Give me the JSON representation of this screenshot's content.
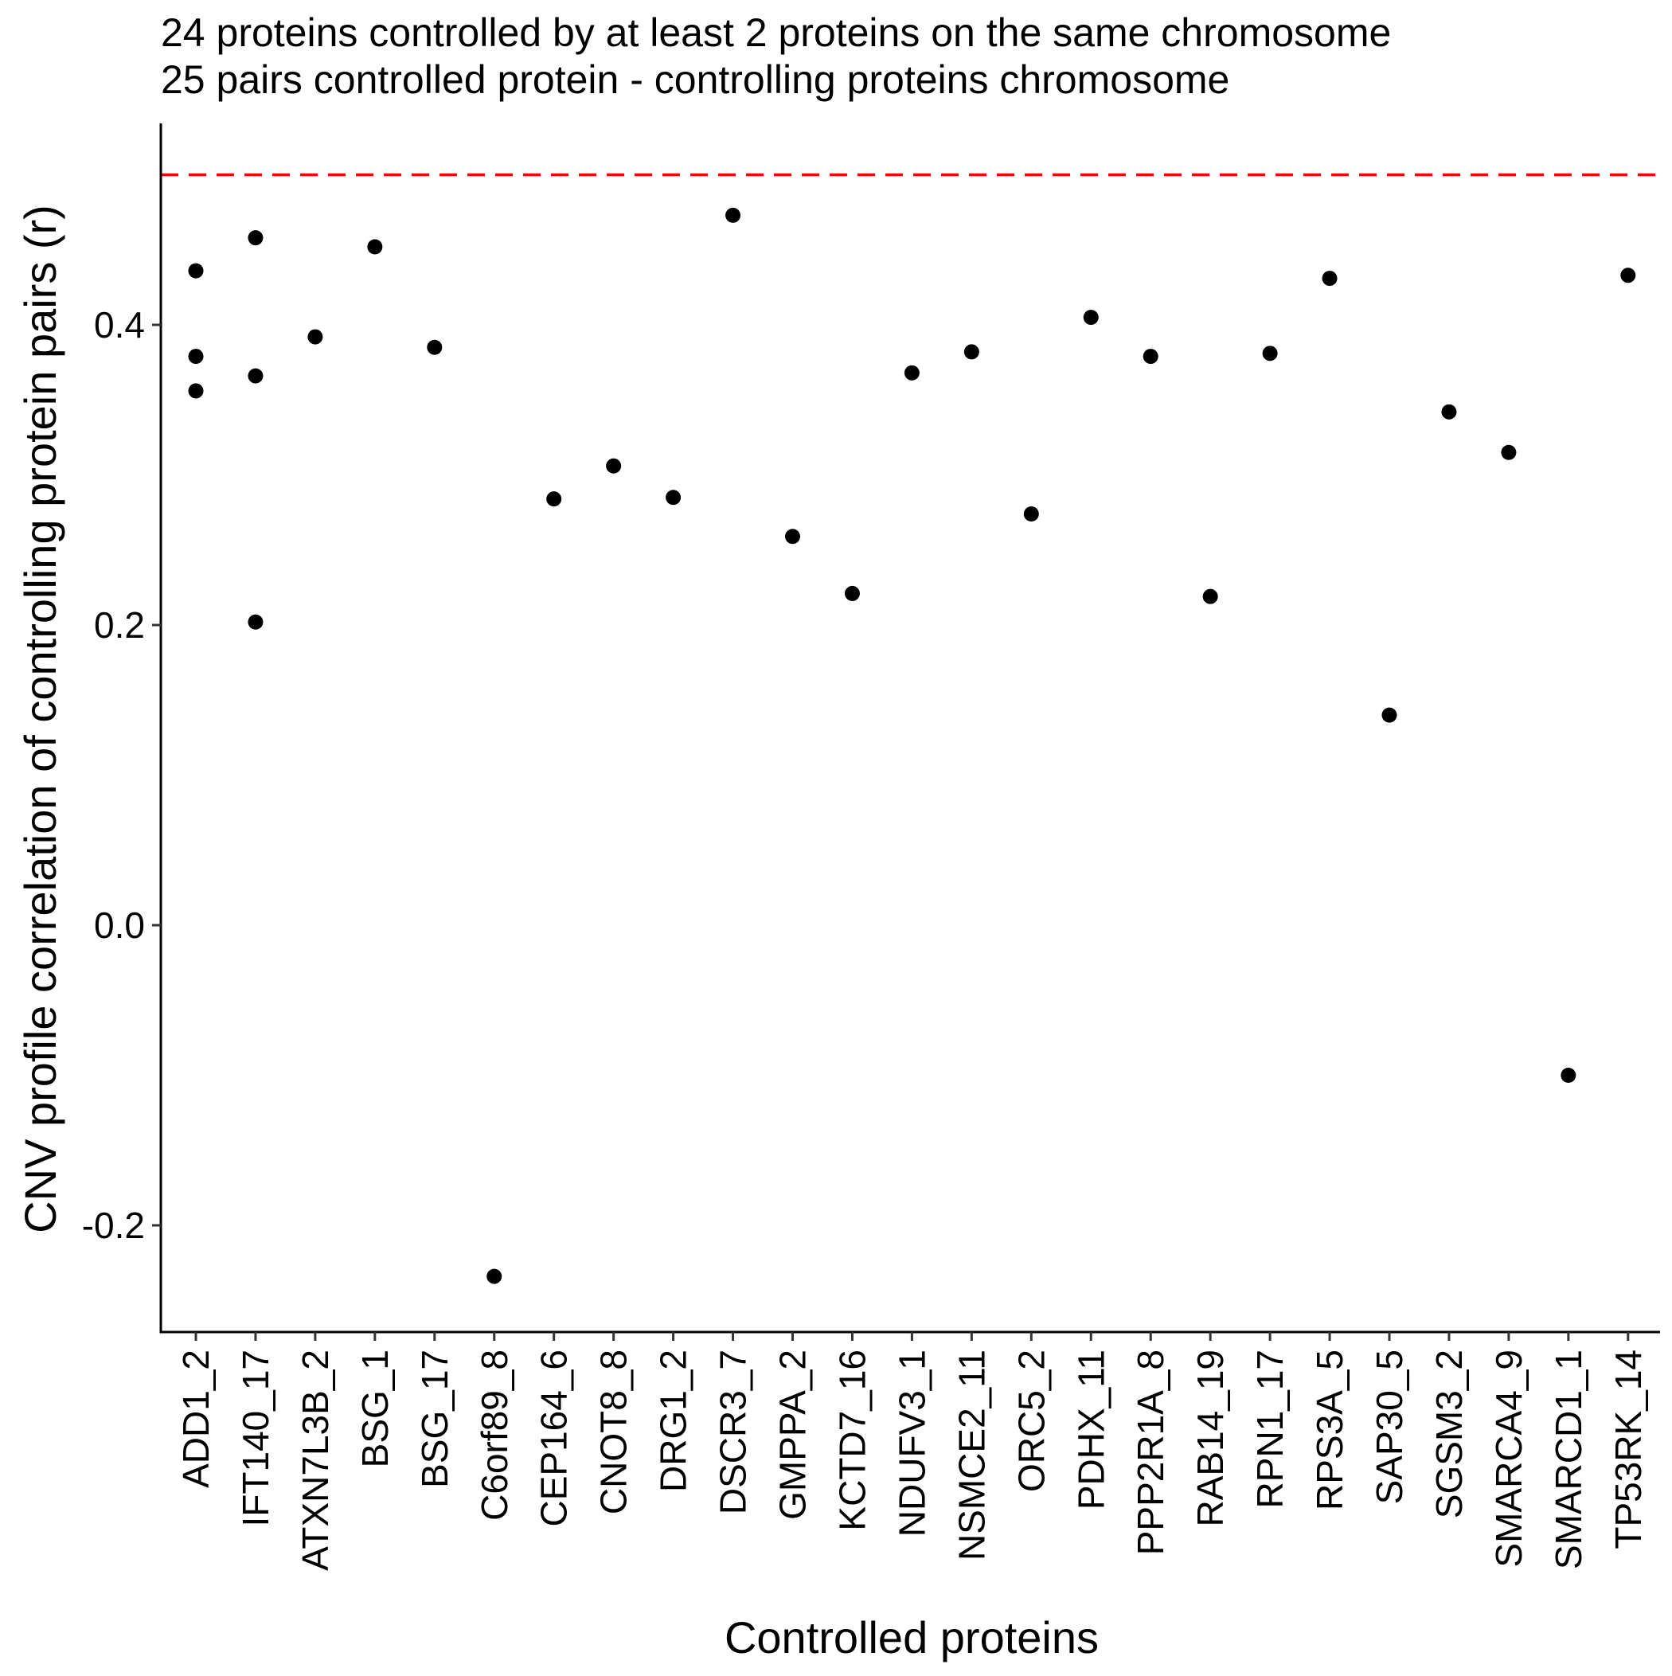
{
  "chart_data": {
    "type": "scatter",
    "title": [
      "24 proteins controlled by at least 2 proteins on the same chromosome",
      "25 pairs controlled protein - controlling proteins chromosome"
    ],
    "xlabel": "Controlled proteins",
    "ylabel": "CNV profile correlation of controlling protein pairs (r)",
    "categories": [
      "ADD1_2",
      "IFT140_17",
      "ATXN7L3B_2",
      "BSG_1",
      "BSG_17",
      "C6orf89_8",
      "CEP164_6",
      "CNOT8_8",
      "DRG1_2",
      "DSCR3_7",
      "GMPPA_2",
      "KCTD7_16",
      "NDUFV3_1",
      "NSMCE2_11",
      "ORC5_2",
      "PDHX_11",
      "PPP2R1A_8",
      "RAB14_19",
      "RPN1_17",
      "RPS3A_5",
      "SAP30_5",
      "SGSM3_2",
      "SMARCA4_9",
      "SMARCD1_1",
      "TP53RK_14"
    ],
    "series": [
      {
        "points": [
          {
            "x": "ADD1_2",
            "y": 0.436
          },
          {
            "x": "ADD1_2",
            "y": 0.379
          },
          {
            "x": "ADD1_2",
            "y": 0.356
          },
          {
            "x": "IFT140_17",
            "y": 0.458
          },
          {
            "x": "IFT140_17",
            "y": 0.366
          },
          {
            "x": "IFT140_17",
            "y": 0.202
          },
          {
            "x": "ATXN7L3B_2",
            "y": 0.392
          },
          {
            "x": "BSG_1",
            "y": 0.452
          },
          {
            "x": "BSG_17",
            "y": 0.385
          },
          {
            "x": "C6orf89_8",
            "y": -0.234
          },
          {
            "x": "CEP164_6",
            "y": 0.284
          },
          {
            "x": "CNOT8_8",
            "y": 0.306
          },
          {
            "x": "DRG1_2",
            "y": 0.285
          },
          {
            "x": "DSCR3_7",
            "y": 0.473
          },
          {
            "x": "GMPPA_2",
            "y": 0.259
          },
          {
            "x": "KCTD7_16",
            "y": 0.221
          },
          {
            "x": "NDUFV3_1",
            "y": 0.368
          },
          {
            "x": "NSMCE2_11",
            "y": 0.382
          },
          {
            "x": "ORC5_2",
            "y": 0.274
          },
          {
            "x": "PDHX_11",
            "y": 0.405
          },
          {
            "x": "PPP2R1A_8",
            "y": 0.379
          },
          {
            "x": "RAB14_19",
            "y": 0.219
          },
          {
            "x": "RPN1_17",
            "y": 0.381
          },
          {
            "x": "RPS3A_5",
            "y": 0.431
          },
          {
            "x": "SAP30_5",
            "y": 0.14
          },
          {
            "x": "SGSM3_2",
            "y": 0.342
          },
          {
            "x": "SMARCA4_9",
            "y": 0.315
          },
          {
            "x": "SMARCD1_1",
            "y": -0.1
          },
          {
            "x": "TP53RK_14",
            "y": 0.433
          }
        ],
        "color": "#000000"
      }
    ],
    "y_ticks": [
      -0.2,
      0.0,
      0.2,
      0.4
    ],
    "y_tick_labels": [
      "-0.2",
      "0.0",
      "0.2",
      "0.4"
    ],
    "ylim": [
      -0.27,
      0.535
    ],
    "reference_line": {
      "y": 0.5,
      "style": "dashed",
      "color": "#ff0000"
    },
    "grid": false,
    "legend": "none"
  }
}
